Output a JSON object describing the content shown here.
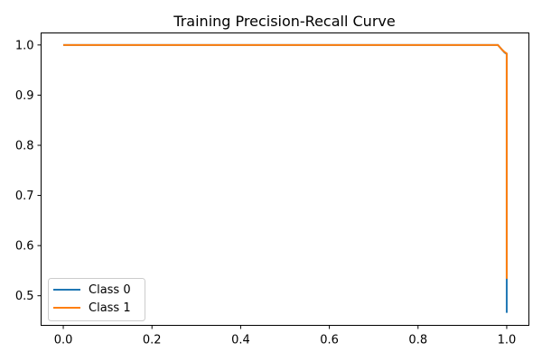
{
  "chart_data": {
    "type": "line",
    "title": "Training Precision-Recall Curve",
    "xlabel": "",
    "ylabel": "",
    "xlim": [
      -0.05,
      1.05
    ],
    "ylim": [
      0.441,
      1.024
    ],
    "x_ticks": [
      "0.0",
      "0.2",
      "0.4",
      "0.6",
      "0.8",
      "1.0"
    ],
    "y_ticks": [
      "0.5",
      "0.6",
      "0.7",
      "0.8",
      "0.9",
      "1.0"
    ],
    "grid": false,
    "legend_position": "lower-left",
    "series": [
      {
        "name": "Class 0",
        "color": "#1f77b4",
        "points": [
          [
            0.0,
            1.0
          ],
          [
            0.98,
            1.0
          ],
          [
            0.985,
            0.995
          ],
          [
            0.99,
            0.99
          ],
          [
            0.995,
            0.985
          ],
          [
            1.0,
            0.982
          ],
          [
            1.0,
            0.532
          ],
          [
            1.0,
            0.466
          ]
        ]
      },
      {
        "name": "Class 1",
        "color": "#ff7f0e",
        "points": [
          [
            0.0,
            1.0
          ],
          [
            0.98,
            1.0
          ],
          [
            0.982,
            0.998
          ],
          [
            0.985,
            0.995
          ],
          [
            0.99,
            0.99
          ],
          [
            0.995,
            0.986
          ],
          [
            1.0,
            0.983
          ],
          [
            1.0,
            0.534
          ]
        ]
      }
    ]
  }
}
